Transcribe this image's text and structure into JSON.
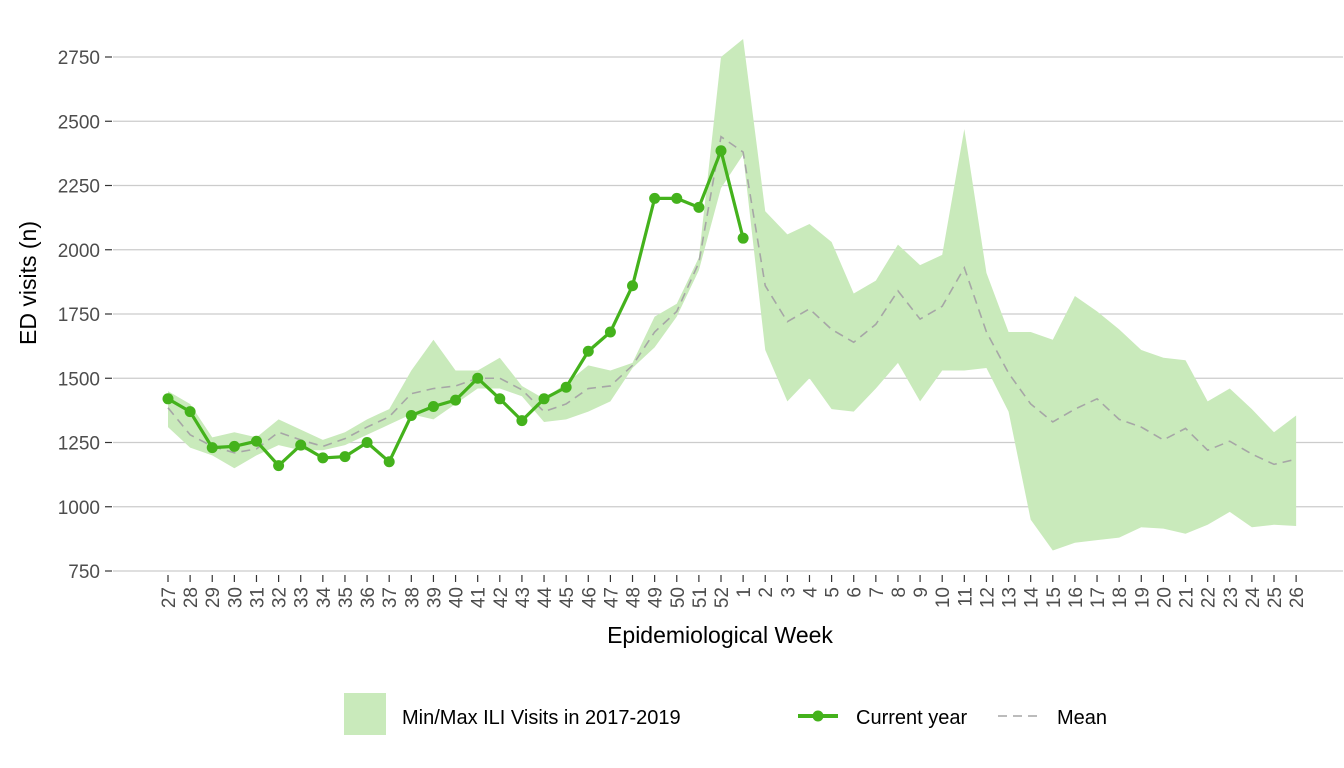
{
  "chart_data": {
    "type": "line",
    "xlabel": "Epidemiological Week",
    "ylabel": "ED visits (n)",
    "ylim": [
      750,
      2820
    ],
    "yticks": [
      750,
      1000,
      1250,
      1500,
      1750,
      2000,
      2250,
      2500,
      2750
    ],
    "categories": [
      "27",
      "28",
      "29",
      "30",
      "31",
      "32",
      "33",
      "34",
      "35",
      "36",
      "37",
      "38",
      "39",
      "40",
      "41",
      "42",
      "43",
      "44",
      "45",
      "46",
      "47",
      "48",
      "49",
      "50",
      "51",
      "52",
      "1",
      "2",
      "3",
      "4",
      "5",
      "6",
      "7",
      "8",
      "9",
      "10",
      "11",
      "12",
      "13",
      "14",
      "15",
      "16",
      "17",
      "18",
      "19",
      "20",
      "21",
      "22",
      "23",
      "24",
      "25",
      "26"
    ],
    "grid": "horizontal",
    "legend_position": "bottom",
    "band": {
      "name": "Min/Max ILI Visits in 2017-2019",
      "color": "#c9eabb",
      "min": [
        1310,
        1230,
        1200,
        1150,
        1200,
        1240,
        1220,
        1220,
        1240,
        1280,
        1320,
        1360,
        1340,
        1400,
        1460,
        1460,
        1430,
        1330,
        1340,
        1370,
        1410,
        1540,
        1620,
        1740,
        1920,
        2240,
        2370,
        1610,
        1410,
        1500,
        1380,
        1370,
        1460,
        1560,
        1410,
        1530,
        1530,
        1540,
        1370,
        950,
        830,
        860,
        870,
        880,
        920,
        915,
        895,
        930,
        980,
        920,
        930,
        925
      ],
      "max": [
        1450,
        1400,
        1270,
        1290,
        1270,
        1340,
        1300,
        1260,
        1290,
        1340,
        1380,
        1530,
        1650,
        1530,
        1530,
        1580,
        1470,
        1420,
        1480,
        1550,
        1530,
        1560,
        1740,
        1790,
        1970,
        2750,
        2820,
        2150,
        2060,
        2100,
        2030,
        1830,
        1880,
        2020,
        1940,
        1980,
        2470,
        1910,
        1680,
        1680,
        1650,
        1820,
        1760,
        1690,
        1610,
        1580,
        1570,
        1410,
        1460,
        1380,
        1290,
        1355
      ]
    },
    "series": [
      {
        "name": "Current year",
        "color": "#44b21c",
        "values": [
          1420,
          1370,
          1230,
          1235,
          1255,
          1160,
          1240,
          1190,
          1195,
          1250,
          1175,
          1355,
          1390,
          1415,
          1500,
          1420,
          1335,
          1420,
          1465,
          1605,
          1680,
          1860,
          2200,
          2200,
          2165,
          2385,
          2045,
          null,
          null,
          null,
          null,
          null,
          null,
          null,
          null,
          null,
          null,
          null,
          null,
          null,
          null,
          null,
          null,
          null,
          null,
          null,
          null,
          null,
          null,
          null,
          null,
          null
        ]
      },
      {
        "name": "Mean",
        "color": "#a6a6a6",
        "values": [
          1385,
          1280,
          1235,
          1210,
          1225,
          1290,
          1260,
          1235,
          1265,
          1310,
          1350,
          1440,
          1460,
          1470,
          1500,
          1500,
          1455,
          1370,
          1400,
          1460,
          1470,
          1550,
          1680,
          1760,
          1950,
          2440,
          2380,
          1860,
          1720,
          1770,
          1690,
          1640,
          1710,
          1840,
          1730,
          1780,
          1930,
          1680,
          1520,
          1400,
          1330,
          1380,
          1420,
          1340,
          1310,
          1260,
          1305,
          1220,
          1255,
          1205,
          1165,
          1185
        ]
      }
    ]
  }
}
